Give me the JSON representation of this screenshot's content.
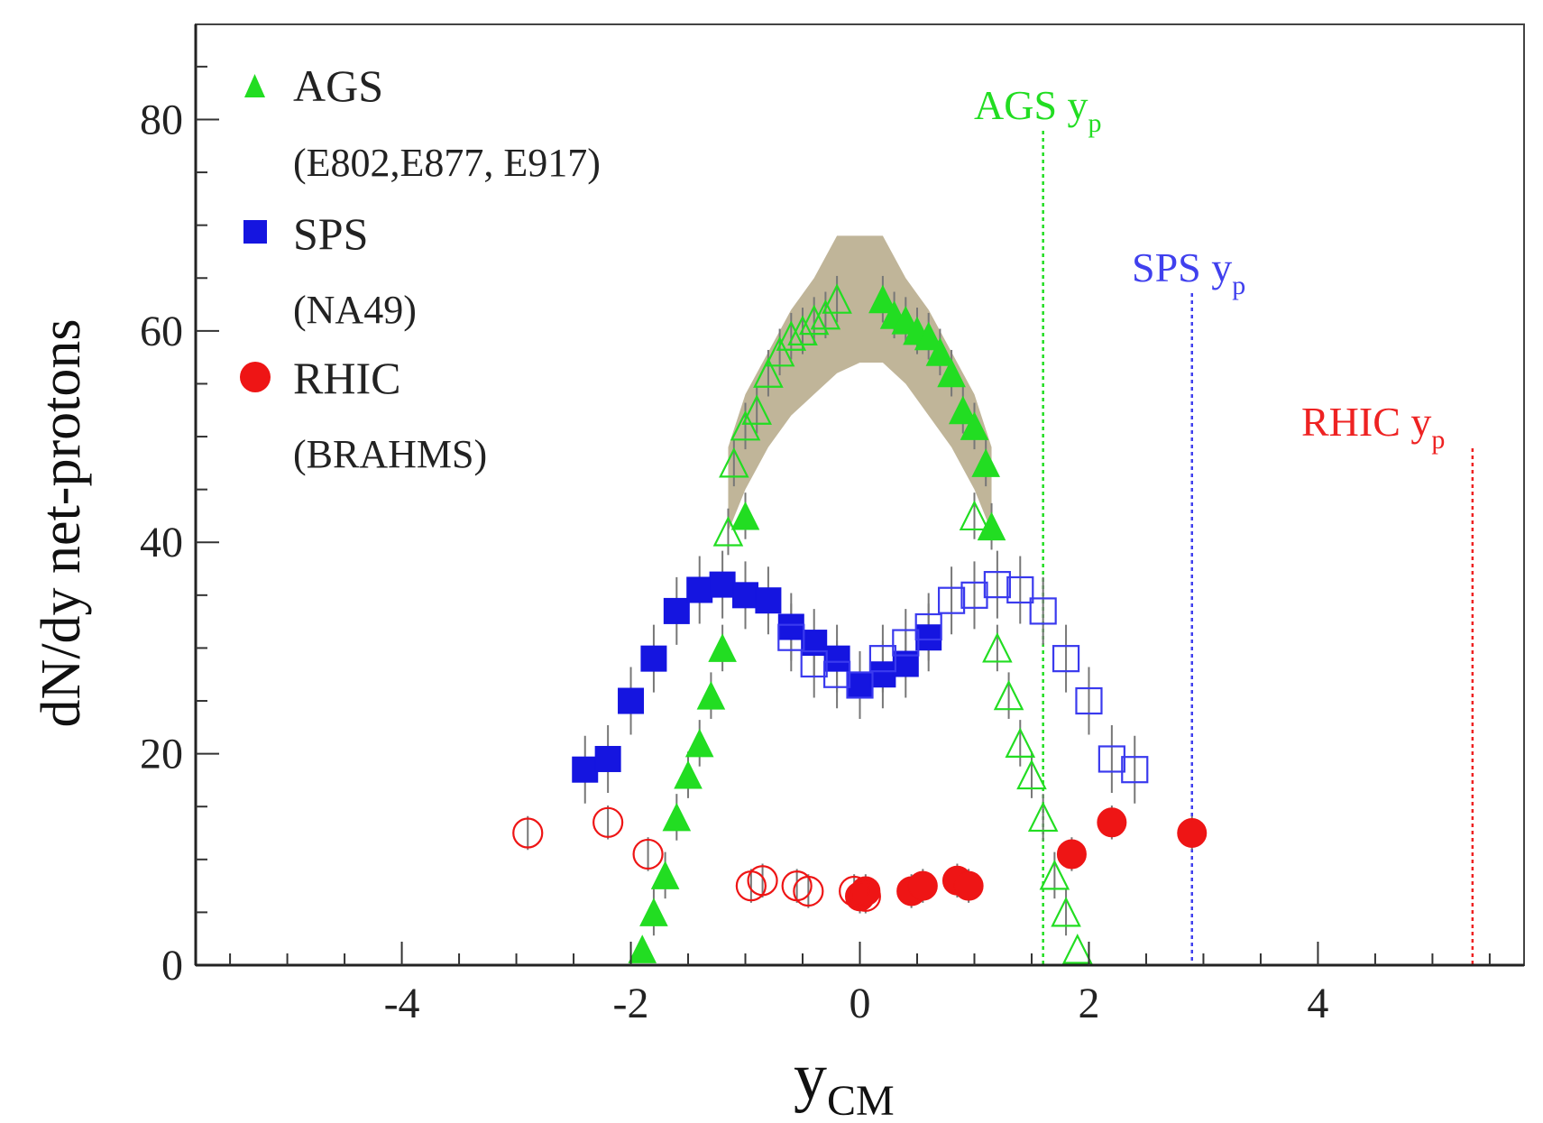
{
  "chart_data": {
    "type": "scatter",
    "xlabel_main": "y",
    "xlabel_sub": "CM",
    "ylabel": "dN/dy net-protons",
    "xlim": [
      -5.8,
      5.8
    ],
    "ylim": [
      0,
      89
    ],
    "x_ticks": [
      {
        "value": -4,
        "label": "-4"
      },
      {
        "value": -2,
        "label": "-2"
      },
      {
        "value": 0,
        "label": "0"
      },
      {
        "value": 2,
        "label": "2"
      },
      {
        "value": 4,
        "label": "4"
      }
    ],
    "y_ticks": [
      {
        "value": 0,
        "label": "0"
      },
      {
        "value": 20,
        "label": "20"
      },
      {
        "value": 40,
        "label": "40"
      },
      {
        "value": 60,
        "label": "60"
      },
      {
        "value": 80,
        "label": "80"
      }
    ],
    "legend": [
      {
        "name": "AGS",
        "detail": "(E802,E877, E917)",
        "marker": "triangle",
        "color": "#22dd22"
      },
      {
        "name": "SPS",
        "detail": "(NA49)",
        "marker": "square",
        "color": "#1515e0"
      },
      {
        "name": "RHIC",
        "detail": "(BRAHMS)",
        "marker": "circle",
        "color": "#ee1515"
      }
    ],
    "beam_rapidity_lines": [
      {
        "label": "AGS y",
        "sub": "p",
        "x": 1.6,
        "color": "#22dd22"
      },
      {
        "label": "SPS y",
        "sub": "p",
        "x": 2.9,
        "color": "#4040ee"
      },
      {
        "label": "RHIC y",
        "sub": "p",
        "x": 5.35,
        "color": "#ee2222"
      }
    ],
    "ags_systematic_band": {
      "x": [
        -1.15,
        -1.0,
        -0.8,
        -0.6,
        -0.4,
        -0.2,
        0.0,
        0.2,
        0.4,
        0.6,
        0.8,
        1.0,
        1.15
      ],
      "upper": [
        49,
        54,
        58,
        62,
        65,
        69,
        69,
        69,
        65,
        62,
        58,
        54,
        49
      ],
      "lower": [
        41,
        45,
        49,
        52,
        54,
        56,
        57,
        57,
        55,
        52,
        49,
        45,
        41
      ],
      "color": "#b5a887"
    },
    "series": [
      {
        "name": "AGS measured",
        "marker": "triangle",
        "filled": true,
        "color": "#22dd22",
        "points": [
          {
            "x": -1.9,
            "y": 1.5
          },
          {
            "x": -1.8,
            "y": 5
          },
          {
            "x": -1.7,
            "y": 8.5
          },
          {
            "x": -1.6,
            "y": 14
          },
          {
            "x": -1.5,
            "y": 18
          },
          {
            "x": -1.4,
            "y": 21
          },
          {
            "x": -1.3,
            "y": 25.5
          },
          {
            "x": -1.2,
            "y": 30
          },
          {
            "x": -1.0,
            "y": 42.5
          },
          {
            "x": 0.2,
            "y": 63
          },
          {
            "x": 0.3,
            "y": 61.5
          },
          {
            "x": 0.4,
            "y": 61
          },
          {
            "x": 0.5,
            "y": 60
          },
          {
            "x": 0.6,
            "y": 59.5
          },
          {
            "x": 0.7,
            "y": 58
          },
          {
            "x": 0.8,
            "y": 56
          },
          {
            "x": 0.9,
            "y": 52.5
          },
          {
            "x": 1.0,
            "y": 51
          },
          {
            "x": 1.1,
            "y": 47.5
          },
          {
            "x": 1.15,
            "y": 41.5
          }
        ]
      },
      {
        "name": "AGS reflected",
        "marker": "triangle",
        "filled": false,
        "color": "#22dd22",
        "points": [
          {
            "x": -1.15,
            "y": 41
          },
          {
            "x": -1.1,
            "y": 47.5
          },
          {
            "x": -1.0,
            "y": 51
          },
          {
            "x": -0.9,
            "y": 52.5
          },
          {
            "x": -0.8,
            "y": 56
          },
          {
            "x": -0.7,
            "y": 58
          },
          {
            "x": -0.6,
            "y": 59.5
          },
          {
            "x": -0.5,
            "y": 60
          },
          {
            "x": -0.4,
            "y": 61
          },
          {
            "x": -0.3,
            "y": 61.5
          },
          {
            "x": -0.2,
            "y": 63
          },
          {
            "x": 1.0,
            "y": 42.5
          },
          {
            "x": 1.2,
            "y": 30
          },
          {
            "x": 1.3,
            "y": 25.5
          },
          {
            "x": 1.4,
            "y": 21
          },
          {
            "x": 1.5,
            "y": 18
          },
          {
            "x": 1.6,
            "y": 14
          },
          {
            "x": 1.7,
            "y": 8.5
          },
          {
            "x": 1.8,
            "y": 5
          },
          {
            "x": 1.9,
            "y": 1.5
          }
        ]
      },
      {
        "name": "SPS measured",
        "marker": "square",
        "filled": true,
        "color": "#1515e0",
        "points": [
          {
            "x": -2.4,
            "y": 18.5
          },
          {
            "x": -2.2,
            "y": 19.5
          },
          {
            "x": -2.0,
            "y": 25
          },
          {
            "x": -1.8,
            "y": 29
          },
          {
            "x": -1.6,
            "y": 33.5
          },
          {
            "x": -1.4,
            "y": 35.5
          },
          {
            "x": -1.2,
            "y": 36
          },
          {
            "x": -1.0,
            "y": 35
          },
          {
            "x": -0.8,
            "y": 34.5
          },
          {
            "x": -0.6,
            "y": 32
          },
          {
            "x": -0.4,
            "y": 30.5
          },
          {
            "x": -0.2,
            "y": 29
          },
          {
            "x": 0.0,
            "y": 26.5
          },
          {
            "x": 0.2,
            "y": 27.5
          },
          {
            "x": 0.4,
            "y": 28.5
          },
          {
            "x": 0.6,
            "y": 31
          }
        ]
      },
      {
        "name": "SPS reflected",
        "marker": "square",
        "filled": false,
        "color": "#3a3aee",
        "points": [
          {
            "x": -0.6,
            "y": 31
          },
          {
            "x": -0.4,
            "y": 28.5
          },
          {
            "x": -0.2,
            "y": 27.5
          },
          {
            "x": 0.0,
            "y": 26.5
          },
          {
            "x": 0.2,
            "y": 29
          },
          {
            "x": 0.4,
            "y": 30.5
          },
          {
            "x": 0.6,
            "y": 32
          },
          {
            "x": 0.8,
            "y": 34.5
          },
          {
            "x": 1.0,
            "y": 35
          },
          {
            "x": 1.2,
            "y": 36
          },
          {
            "x": 1.4,
            "y": 35.5
          },
          {
            "x": 1.6,
            "y": 33.5
          },
          {
            "x": 1.8,
            "y": 29
          },
          {
            "x": 2.0,
            "y": 25
          },
          {
            "x": 2.2,
            "y": 19.5
          },
          {
            "x": 2.4,
            "y": 18.5
          }
        ]
      },
      {
        "name": "RHIC measured",
        "marker": "circle",
        "filled": true,
        "color": "#ee1515",
        "points": [
          {
            "x": 0.0,
            "y": 6.5
          },
          {
            "x": 0.05,
            "y": 7
          },
          {
            "x": 0.45,
            "y": 7
          },
          {
            "x": 0.55,
            "y": 7.5
          },
          {
            "x": 0.85,
            "y": 8
          },
          {
            "x": 0.95,
            "y": 7.5
          },
          {
            "x": 1.85,
            "y": 10.5
          },
          {
            "x": 2.2,
            "y": 13.5
          },
          {
            "x": 2.9,
            "y": 12.5
          }
        ]
      },
      {
        "name": "RHIC reflected",
        "marker": "circle",
        "filled": false,
        "color": "#ee1515",
        "points": [
          {
            "x": -2.9,
            "y": 12.5
          },
          {
            "x": -2.2,
            "y": 13.5
          },
          {
            "x": -1.85,
            "y": 10.5
          },
          {
            "x": -0.95,
            "y": 7.5
          },
          {
            "x": -0.85,
            "y": 8
          },
          {
            "x": -0.55,
            "y": 7.5
          },
          {
            "x": -0.45,
            "y": 7
          },
          {
            "x": -0.05,
            "y": 7
          },
          {
            "x": 0.05,
            "y": 6.5
          }
        ]
      }
    ]
  }
}
